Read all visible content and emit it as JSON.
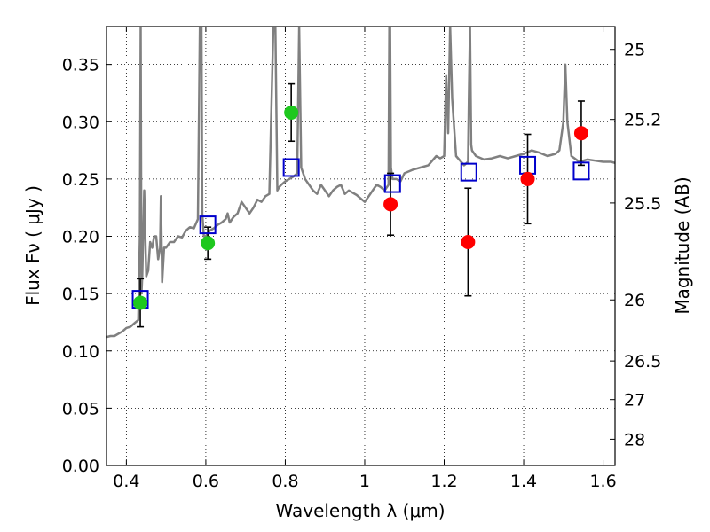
{
  "chart_data": {
    "type": "scatter",
    "xlabel": "Wavelength  λ (μm)",
    "ylabel": "Flux  Fν  ( μJy )",
    "y2label": "Magnitude (AB)",
    "xlim": [
      0.35,
      1.63
    ],
    "ylim": [
      0.0,
      0.383
    ],
    "x_ticks": [
      0.4,
      0.6,
      0.8,
      1.0,
      1.2,
      1.4,
      1.6
    ],
    "x_tick_labels": [
      "0.4",
      "0.6",
      "0.8",
      "1",
      "1.2",
      "1.4",
      "1.6"
    ],
    "y_ticks": [
      0.0,
      0.05,
      0.1,
      0.15,
      0.2,
      0.25,
      0.3,
      0.35
    ],
    "y_tick_labels": [
      "0.00",
      "0.05",
      "0.10",
      "0.15",
      "0.20",
      "0.25",
      "0.30",
      "0.35"
    ],
    "y2_ticks": [
      {
        "label": "25",
        "flux": 0.3631
      },
      {
        "label": "25.2",
        "flux": 0.302
      },
      {
        "label": "25.5",
        "flux": 0.2291
      },
      {
        "label": "26",
        "flux": 0.1445
      },
      {
        "label": "26.5",
        "flux": 0.0912
      },
      {
        "label": "27",
        "flux": 0.0575
      },
      {
        "label": "28",
        "flux": 0.0229
      }
    ],
    "grid": true,
    "colors": {
      "spectrum": "#808080",
      "green_points": "#1ec81e",
      "red_points": "#ff0000",
      "model_squares": "#0000cc",
      "errorbars": "#000000"
    },
    "series": [
      {
        "kind": "line",
        "x": [
          0.35,
          0.36,
          0.37,
          0.38,
          0.39,
          0.4,
          0.41,
          0.42,
          0.43,
          0.434,
          0.436,
          0.438,
          0.44,
          0.445,
          0.45,
          0.455,
          0.46,
          0.465,
          0.47,
          0.475,
          0.48,
          0.485,
          0.487,
          0.49,
          0.495,
          0.5,
          0.51,
          0.52,
          0.53,
          0.54,
          0.55,
          0.56,
          0.57,
          0.58,
          0.585,
          0.587,
          0.589,
          0.591,
          0.595,
          0.6,
          0.61,
          0.62,
          0.63,
          0.64,
          0.65,
          0.655,
          0.66,
          0.67,
          0.68,
          0.69,
          0.7,
          0.71,
          0.72,
          0.73,
          0.74,
          0.75,
          0.76,
          0.77,
          0.775,
          0.78,
          0.785,
          0.79,
          0.8,
          0.81,
          0.82,
          0.83,
          0.835,
          0.84,
          0.845,
          0.85,
          0.86,
          0.87,
          0.88,
          0.89,
          0.9,
          0.91,
          0.92,
          0.93,
          0.94,
          0.95,
          0.96,
          0.97,
          0.98,
          0.99,
          1.0,
          1.01,
          1.02,
          1.03,
          1.04,
          1.05,
          1.06,
          1.062,
          1.064,
          1.066,
          1.07,
          1.08,
          1.09,
          1.1,
          1.12,
          1.14,
          1.16,
          1.18,
          1.19,
          1.2,
          1.205,
          1.21,
          1.215,
          1.22,
          1.23,
          1.25,
          1.26,
          1.262,
          1.265,
          1.268,
          1.27,
          1.28,
          1.3,
          1.32,
          1.34,
          1.36,
          1.38,
          1.4,
          1.42,
          1.44,
          1.46,
          1.48,
          1.49,
          1.5,
          1.505,
          1.51,
          1.52,
          1.54,
          1.56,
          1.58,
          1.6,
          1.62,
          1.63
        ],
        "y": [
          0.112,
          0.113,
          0.113,
          0.115,
          0.117,
          0.12,
          0.121,
          0.124,
          0.127,
          0.2,
          0.383,
          0.15,
          0.165,
          0.24,
          0.165,
          0.17,
          0.195,
          0.19,
          0.2,
          0.2,
          0.18,
          0.19,
          0.235,
          0.16,
          0.19,
          0.19,
          0.195,
          0.195,
          0.2,
          0.199,
          0.205,
          0.208,
          0.207,
          0.215,
          0.383,
          0.383,
          0.383,
          0.22,
          0.2,
          0.2,
          0.205,
          0.207,
          0.21,
          0.212,
          0.215,
          0.22,
          0.212,
          0.217,
          0.22,
          0.23,
          0.225,
          0.22,
          0.225,
          0.232,
          0.23,
          0.235,
          0.237,
          0.383,
          0.383,
          0.24,
          0.243,
          0.245,
          0.248,
          0.25,
          0.252,
          0.255,
          0.383,
          0.26,
          0.255,
          0.25,
          0.245,
          0.24,
          0.237,
          0.245,
          0.24,
          0.235,
          0.24,
          0.243,
          0.245,
          0.237,
          0.24,
          0.238,
          0.236,
          0.233,
          0.23,
          0.235,
          0.24,
          0.245,
          0.243,
          0.24,
          0.245,
          0.383,
          0.383,
          0.26,
          0.25,
          0.25,
          0.248,
          0.255,
          0.258,
          0.26,
          0.262,
          0.27,
          0.268,
          0.27,
          0.34,
          0.29,
          0.383,
          0.32,
          0.27,
          0.262,
          0.265,
          0.32,
          0.383,
          0.28,
          0.275,
          0.27,
          0.267,
          0.268,
          0.27,
          0.268,
          0.27,
          0.272,
          0.275,
          0.273,
          0.27,
          0.272,
          0.275,
          0.3,
          0.35,
          0.3,
          0.27,
          0.265,
          0.267,
          0.266,
          0.265,
          0.265,
          0.264
        ]
      },
      {
        "kind": "errorbar",
        "name": "",
        "color": "green",
        "x": [
          0.435,
          0.605,
          0.815
        ],
        "y": [
          0.142,
          0.194,
          0.308
        ],
        "yerr": [
          0.021,
          0.014,
          0.025
        ]
      },
      {
        "kind": "errorbar",
        "name": "",
        "color": "red",
        "x": [
          1.065,
          1.26,
          1.41,
          1.545
        ],
        "y": [
          0.228,
          0.195,
          0.25,
          0.29
        ],
        "yerr": [
          0.027,
          0.047,
          0.039,
          0.028
        ]
      },
      {
        "kind": "squares",
        "color": "blue",
        "x": [
          0.435,
          0.605,
          0.815,
          1.07,
          1.262,
          1.41,
          1.545
        ],
        "y": [
          0.145,
          0.21,
          0.26,
          0.246,
          0.256,
          0.262,
          0.257
        ]
      }
    ]
  }
}
